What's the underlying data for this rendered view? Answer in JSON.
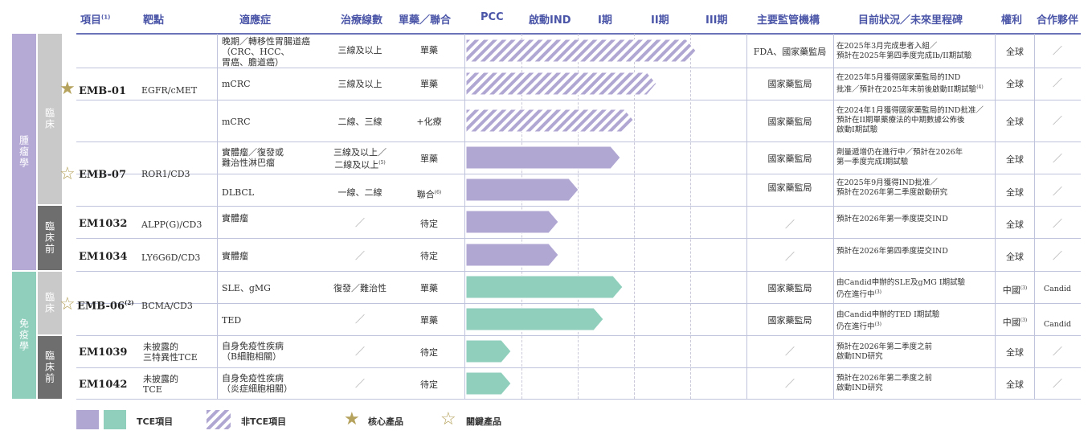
{
  "headers": {
    "project": "項目",
    "project_note": "(1)",
    "target": "靶點",
    "indication": "適應症",
    "line": "治療線數",
    "mono_combo": "單藥／聯合",
    "pcc": "PCC",
    "ind_enabling": "啟動IND",
    "phase1": "I期",
    "phase2": "II期",
    "phase3": "III期",
    "regulator": "主要監管機構",
    "status": "目前狀況／未來里程碑",
    "rights": "權利",
    "partner": "合作夥伴"
  },
  "side": {
    "oncology": "腫瘤學",
    "immunology": "免疫學",
    "clinical": "臨床",
    "preclinical": "臨床前"
  },
  "rows": [
    {
      "indication": "晚期／轉移性胃腸道癌",
      "indication2": "（CRC、HCC、",
      "indication3": "胃癌、膽道癌）",
      "line": "三線及以上",
      "mono": "單藥",
      "regulator": "FDA、國家藥監局",
      "status1": "在2025年3月完成患者入組／",
      "status2": "預計在2025年第四季度完成Ib/II期試驗",
      "rights": "全球",
      "partner": "／",
      "progress": 0.82,
      "fill": "hatch-purple"
    },
    {
      "indication": "mCRC",
      "line": "三線及以上",
      "mono": "單藥",
      "regulator": "國家藥監局",
      "status1": "在2025年5月獲得國家藥監局的IND",
      "status2": "批准／預計在2025年末前後啟動II期試驗",
      "status_note": "(4)",
      "rights": "全球",
      "partner": "／",
      "progress": 0.68,
      "fill": "hatch-purple"
    },
    {
      "indication": "mCRC",
      "line": "二線、三線",
      "mono": "+化療",
      "regulator": "國家藥監局",
      "status1": "在2024年1月獲得國家藥監局的IND批准／",
      "status2": "預計在II期單藥療法的中期數據公佈後",
      "status3": "啟動I期試驗",
      "rights": "全球",
      "partner": "／",
      "progress": 0.6,
      "fill": "hatch-purple"
    },
    {
      "indication": "實體瘤／復發或",
      "indication2": "難治性淋巴瘤",
      "line": "三線及以上／",
      "line2": "二線及以上",
      "line_note": "(5)",
      "mono": "單藥",
      "regulator": "國家藥監局",
      "status1": "劑量遞增仍在進行中／預計在2026年",
      "status2": "第一季度完成I期試驗",
      "rights": "全球",
      "partner": "／",
      "progress": 0.55,
      "fill": "purple"
    },
    {
      "indication": "DLBCL",
      "line": "一線、二線",
      "mono": "聯合",
      "mono_note": "(6)",
      "regulator": "國家藥監局",
      "status1": "在2025年9月獲得IND批准／",
      "status2": "預計在2026年第二季度啟動研究",
      "rights": "全球",
      "partner": "／",
      "progress": 0.4,
      "fill": "purple"
    },
    {
      "indication": "實體瘤",
      "line": "／",
      "mono": "待定",
      "regulator": "／",
      "status1": "預計在2026年第一季度提交IND",
      "rights": "全球",
      "partner": "／",
      "progress": 0.33,
      "fill": "purple"
    },
    {
      "indication": "實體瘤",
      "line": "／",
      "mono": "待定",
      "regulator": "／",
      "status1": "預計在2026年第四季度提交IND",
      "rights": "全球",
      "partner": "／",
      "progress": 0.33,
      "fill": "purple"
    },
    {
      "indication": "SLE、gMG",
      "line": "復發／難治性",
      "mono": "單藥",
      "regulator": "國家藥監局",
      "status1": "由Candid申辦的SLE及gMG I期試驗",
      "status2": "仍在進行中",
      "status_note": "(3)",
      "rights": "中國",
      "rights_note": "(3)",
      "partner": "Candid",
      "progress": 0.56,
      "fill": "teal"
    },
    {
      "indication": "TED",
      "line": "／",
      "mono": "單藥",
      "regulator": "國家藥監局",
      "status1": "由Candid申辦的TED I期試驗",
      "status2": "仍在進行中",
      "status_note": "(3)",
      "rights": "中國",
      "rights_note": "(3)",
      "partner": "Candid",
      "progress": 0.49,
      "fill": "teal"
    },
    {
      "indication": "自身免疫性疾病",
      "indication2": "（B細胞相關）",
      "line": "／",
      "mono": "待定",
      "regulator": "／",
      "status1": "預計在2026年第二季度之前",
      "status2": "啟動IND研究",
      "rights": "全球",
      "partner": "／",
      "progress": 0.16,
      "fill": "teal"
    },
    {
      "indication": "自身免疫性疾病",
      "indication2": "（炎症細胞相關）",
      "line": "／",
      "mono": "待定",
      "regulator": "／",
      "status1": "預計在2026年第二季度之前",
      "status2": "啟動IND研究",
      "rights": "全球",
      "partner": "／",
      "progress": 0.16,
      "fill": "teal"
    }
  ],
  "projects": [
    {
      "name": "EMB-01",
      "target": "EGFR/cMET",
      "star": "core"
    },
    {
      "name": "EMB-07",
      "target": "ROR1/CD3",
      "star": "key"
    },
    {
      "name": "EM1032",
      "target": "ALPP(G)/CD3"
    },
    {
      "name": "EM1034",
      "target": "LY6G6D/CD3"
    },
    {
      "name": "EMB-06",
      "name_note": "(2)",
      "target": "BCMA/CD3",
      "star": "key"
    },
    {
      "name": "EM1039",
      "target": "未披露的",
      "target2": "三特異性TCE"
    },
    {
      "name": "EM1042",
      "target": "未披露的",
      "target2": "TCE"
    }
  ],
  "legend": {
    "tce": "TCE項目",
    "non_tce": "非TCE項目",
    "core": "核心產品",
    "key": "關鍵產品"
  },
  "colors": {
    "purple": "#b1a7d3",
    "teal": "#8fcfbc",
    "side_purple": "#b5a9d6",
    "side_gray": "#c9c9c9",
    "side_dark": "#6e6e6e",
    "side_teal": "#8fcfbc",
    "header": "#4a55a8",
    "star": "#b5a25c"
  }
}
